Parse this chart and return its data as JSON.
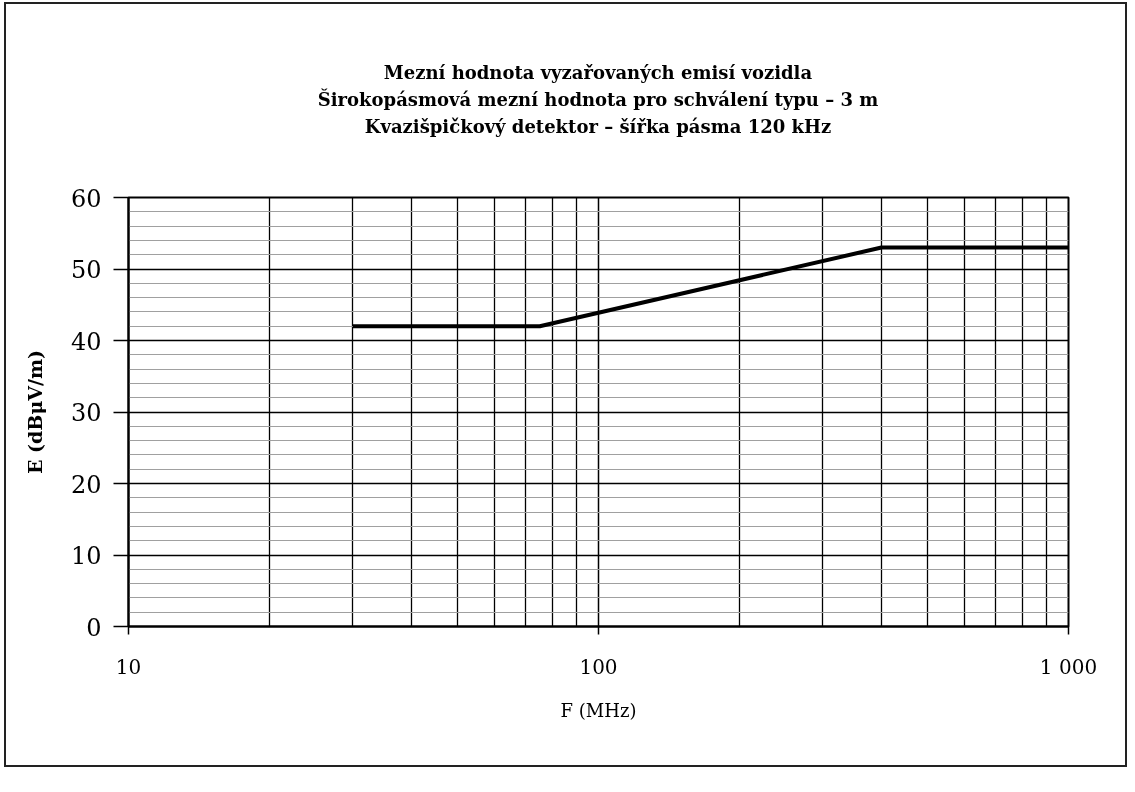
{
  "chart_data": {
    "type": "line",
    "title": "Mezní hodnota vyzařovaných emisí vozidla",
    "subtitle": "Širokopásmová mezní hodnota pro schválení typu – 3 m\nKvazišpičkový detektor – šířka pásma 120 kHz",
    "xlabel": "F (MHz)",
    "ylabel": "E (dBμV/m)",
    "x": [
      30,
      75,
      400,
      1000
    ],
    "series": [
      {
        "color": "#000000",
        "values": [
          42,
          42,
          53,
          53
        ]
      }
    ],
    "log": "x",
    "xlim": [
      10,
      1000
    ],
    "xticks": [
      10,
      100,
      {
        "value": 1000,
        "label": "1 000"
      }
    ],
    "ylim": [
      0,
      60
    ],
    "yticks": [
      0,
      10,
      20,
      30,
      40,
      50,
      60
    ],
    "grid": true,
    "line_style": "solid",
    "marker": "none"
  }
}
